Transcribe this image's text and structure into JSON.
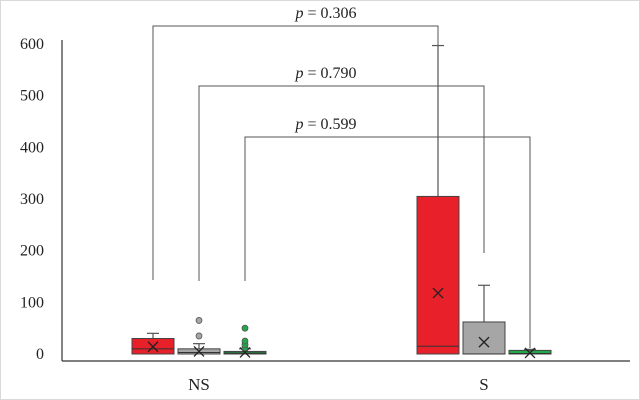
{
  "chart_data": {
    "type": "boxplot",
    "title": "",
    "xlabel": "",
    "ylabel": "",
    "ylim": [
      0,
      600
    ],
    "yticks": [
      "0",
      "100",
      "200",
      "300",
      "400",
      "500",
      "600"
    ],
    "grid": false,
    "categories": [
      "NS",
      "S"
    ],
    "series": [
      {
        "name": "red",
        "color": "#e8202a",
        "boxes": [
          {
            "category": "NS",
            "min": 0,
            "q1": 0,
            "median": 10,
            "q3": 30,
            "max": 40,
            "mean": 14,
            "outliers": []
          },
          {
            "category": "S",
            "min": 0,
            "q1": 0,
            "median": 15,
            "q3": 305,
            "max": 597,
            "mean": 118,
            "outliers": []
          }
        ]
      },
      {
        "name": "gray",
        "color": "#a6a6a6",
        "boxes": [
          {
            "category": "NS",
            "min": 0,
            "q1": 0,
            "median": 3,
            "q3": 10,
            "max": 20,
            "mean": 5,
            "outliers": [
              35,
              65
            ]
          },
          {
            "category": "S",
            "min": 0,
            "q1": 0,
            "median": 0,
            "q3": 62,
            "max": 133,
            "mean": 23,
            "outliers": []
          }
        ]
      },
      {
        "name": "green",
        "color": "#20a84a",
        "boxes": [
          {
            "category": "NS",
            "min": 0,
            "q1": 0,
            "median": 2,
            "q3": 5,
            "max": 10,
            "mean": 3,
            "outliers": [
              12,
              18,
              25,
              50
            ]
          },
          {
            "category": "S",
            "min": 0,
            "q1": 0,
            "median": 1,
            "q3": 7,
            "max": 9,
            "mean": 2,
            "outliers": []
          }
        ]
      }
    ],
    "comparisons": [
      {
        "series": "red",
        "p_prefix": "p",
        "p_value": "= 0.306"
      },
      {
        "series": "gray",
        "p_prefix": "p",
        "p_value": "=  0.790"
      },
      {
        "series": "green",
        "p_prefix": "p",
        "p_value": "=  0.599"
      }
    ]
  }
}
